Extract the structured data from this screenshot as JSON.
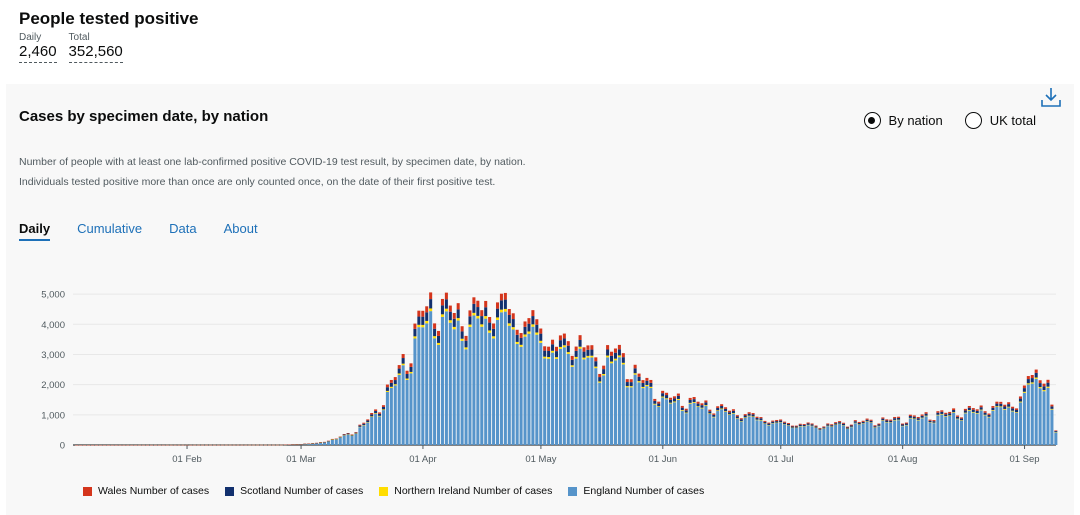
{
  "summary": {
    "title": "People tested positive",
    "daily_label": "Daily",
    "daily_value": "2,460",
    "total_label": "Total",
    "total_value": "352,560"
  },
  "card": {
    "title": "Cases by specimen date, by nation",
    "description": "Number of people with at least one lab-confirmed positive COVID-19 test result, by specimen date, by nation. Individuals tested positive more than once are only counted once, on the date of their first positive test.",
    "download_icon": "download-icon",
    "radios": [
      {
        "label": "By nation",
        "selected": true
      },
      {
        "label": "UK total",
        "selected": false
      }
    ],
    "tabs": [
      {
        "label": "Daily",
        "active": true
      },
      {
        "label": "Cumulative",
        "active": false
      },
      {
        "label": "Data",
        "active": false
      },
      {
        "label": "About",
        "active": false
      }
    ]
  },
  "colors": {
    "england": "#5694ca",
    "northern_ireland": "#ffdd00",
    "scotland": "#12306e",
    "wales": "#d4351c"
  },
  "chart_data": {
    "type": "bar",
    "stacked": true,
    "ylim": [
      0,
      5500
    ],
    "yticks": [
      0,
      1000,
      2000,
      3000,
      4000,
      5000
    ],
    "ytick_labels": [
      "0",
      "1,000",
      "2,000",
      "3,000",
      "4,000",
      "5,000"
    ],
    "x_start": "2020-01-03",
    "x_end": "2020-09-09",
    "xtick_labels": [
      "01 Feb",
      "01 Mar",
      "01 Apr",
      "01 May",
      "01 Jun",
      "01 Jul",
      "01 Aug",
      "01 Sep"
    ],
    "xticks": [
      "2020-02-01",
      "2020-03-01",
      "2020-04-01",
      "2020-05-01",
      "2020-06-01",
      "2020-07-01",
      "2020-08-01",
      "2020-09-01"
    ],
    "grid": true,
    "legend_position": "bottom-left",
    "legend_entries": [
      "Wales Number of cases",
      "Scotland Number of cases",
      "Northern Ireland Number of cases",
      "England Number of cases"
    ],
    "england_anchors": [
      [
        "2020-01-03",
        0
      ],
      [
        "2020-02-25",
        5
      ],
      [
        "2020-03-01",
        30
      ],
      [
        "2020-03-05",
        60
      ],
      [
        "2020-03-10",
        200
      ],
      [
        "2020-03-15",
        450
      ],
      [
        "2020-03-20",
        1000
      ],
      [
        "2020-03-25",
        2100
      ],
      [
        "2020-03-28",
        2700
      ],
      [
        "2020-04-01",
        4100
      ],
      [
        "2020-04-05",
        4300
      ],
      [
        "2020-04-10",
        4000
      ],
      [
        "2020-04-15",
        4100
      ],
      [
        "2020-04-20",
        4400
      ],
      [
        "2020-04-25",
        3900
      ],
      [
        "2020-05-01",
        3600
      ],
      [
        "2020-05-05",
        3000
      ],
      [
        "2020-05-10",
        3300
      ],
      [
        "2020-05-15",
        2600
      ],
      [
        "2020-05-20",
        2900
      ],
      [
        "2020-05-25",
        2200
      ],
      [
        "2020-06-01",
        1500
      ],
      [
        "2020-06-10",
        1300
      ],
      [
        "2020-06-20",
        1000
      ],
      [
        "2020-07-01",
        700
      ],
      [
        "2020-07-10",
        600
      ],
      [
        "2020-07-20",
        700
      ],
      [
        "2020-08-01",
        800
      ],
      [
        "2020-08-10",
        950
      ],
      [
        "2020-08-20",
        1100
      ],
      [
        "2020-08-30",
        1300
      ],
      [
        "2020-09-04",
        2300
      ],
      [
        "2020-09-07",
        2000
      ],
      [
        "2020-09-09",
        400
      ]
    ],
    "ni_share": 0.02,
    "scotland_share": 0.07,
    "wales_share": 0.05,
    "series": [
      {
        "name": "England Number of cases",
        "color_key": "england"
      },
      {
        "name": "Northern Ireland Number of cases",
        "color_key": "northern_ireland"
      },
      {
        "name": "Scotland Number of cases",
        "color_key": "scotland"
      },
      {
        "name": "Wales Number of cases",
        "color_key": "wales"
      }
    ]
  }
}
